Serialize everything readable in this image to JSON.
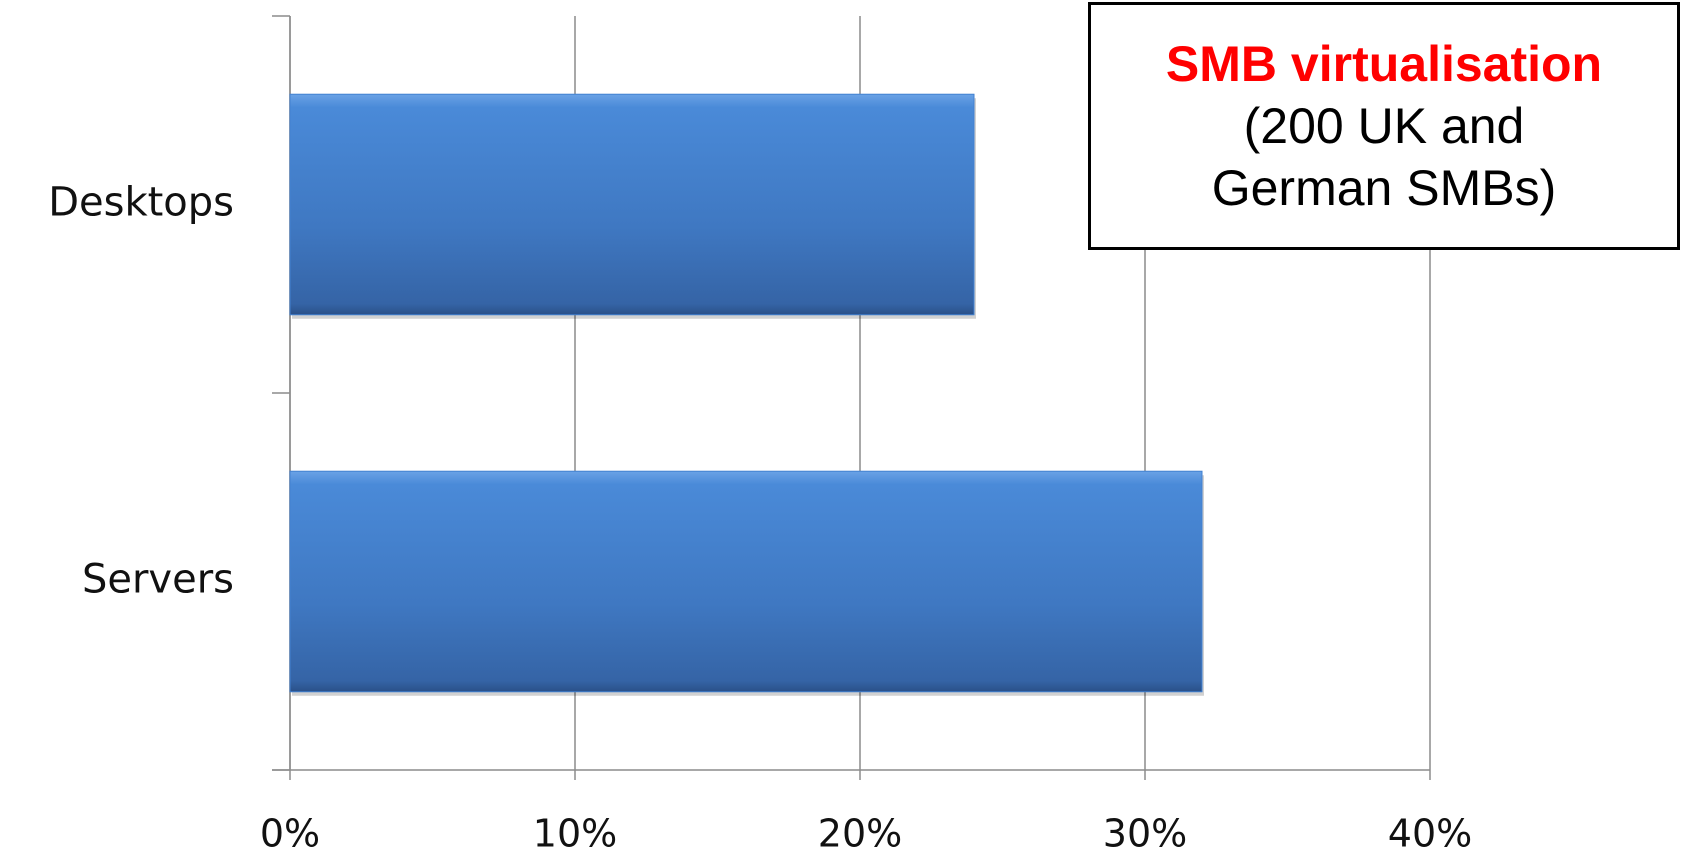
{
  "chart_data": {
    "type": "bar",
    "orientation": "horizontal",
    "categories": [
      "Desktops",
      "Servers"
    ],
    "values": [
      24,
      32
    ],
    "color": "#4281d1",
    "xlim": [
      0,
      40
    ],
    "xticks": [
      {
        "value": 0,
        "label": "0%"
      },
      {
        "value": 10,
        "label": "10%"
      },
      {
        "value": 20,
        "label": "20%"
      },
      {
        "value": 30,
        "label": "30%"
      },
      {
        "value": 40,
        "label": "40%"
      }
    ],
    "grid": true,
    "annotation": {
      "title": "SMB virtualisation",
      "text": "(200 UK and German SMBs)"
    }
  }
}
